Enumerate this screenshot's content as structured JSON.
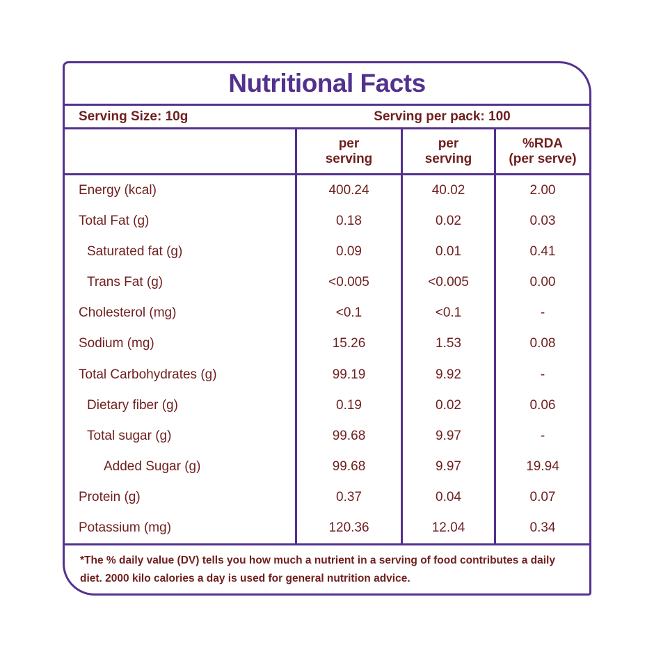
{
  "colors": {
    "accent_purple": "#53318e",
    "text_maroon": "#701e1e",
    "background": "#ffffff"
  },
  "title": "Nutritional Facts",
  "serving": {
    "size_label": "Serving Size: 10g",
    "pack_label": "Serving per pack: 100"
  },
  "table": {
    "columns": [
      {
        "line1": "per",
        "line2": "serving"
      },
      {
        "line1": "per",
        "line2": "serving"
      },
      {
        "line1": "%RDA",
        "line2": "(per serve)"
      }
    ],
    "rows": [
      {
        "label": "Energy (kcal)",
        "indent": 0,
        "values": [
          "400.24",
          "40.02",
          "2.00"
        ]
      },
      {
        "label": "Total Fat (g)",
        "indent": 0,
        "values": [
          "0.18",
          "0.02",
          "0.03"
        ]
      },
      {
        "label": "Saturated fat (g)",
        "indent": 1,
        "values": [
          "0.09",
          "0.01",
          "0.41"
        ]
      },
      {
        "label": "Trans Fat (g)",
        "indent": 1,
        "values": [
          "<0.005",
          "<0.005",
          "0.00"
        ]
      },
      {
        "label": "Cholesterol (mg)",
        "indent": 0,
        "values": [
          "<0.1",
          "<0.1",
          "-"
        ]
      },
      {
        "label": "Sodium (mg)",
        "indent": 0,
        "values": [
          "15.26",
          "1.53",
          "0.08"
        ]
      },
      {
        "label": "Total Carbohydrates  (g)",
        "indent": 0,
        "values": [
          "99.19",
          "9.92",
          "-"
        ]
      },
      {
        "label": "Dietary fiber (g)",
        "indent": 1,
        "values": [
          "0.19",
          "0.02",
          "0.06"
        ]
      },
      {
        "label": "Total sugar (g)",
        "indent": 1,
        "values": [
          "99.68",
          "9.97",
          "-"
        ]
      },
      {
        "label": "Added Sugar (g)",
        "indent": 2,
        "values": [
          "99.68",
          "9.97",
          "19.94"
        ]
      },
      {
        "label": "Protein (g)",
        "indent": 0,
        "values": [
          "0.37",
          "0.04",
          "0.07"
        ]
      },
      {
        "label": "Potassium (mg)",
        "indent": 0,
        "values": [
          "120.36",
          "12.04",
          "0.34"
        ]
      }
    ]
  },
  "footnote": "*The % daily value (DV) tells you how much a nutrient in a serving of food contributes a daily diet. 2000 kilo calories a day is used for general nutrition advice."
}
